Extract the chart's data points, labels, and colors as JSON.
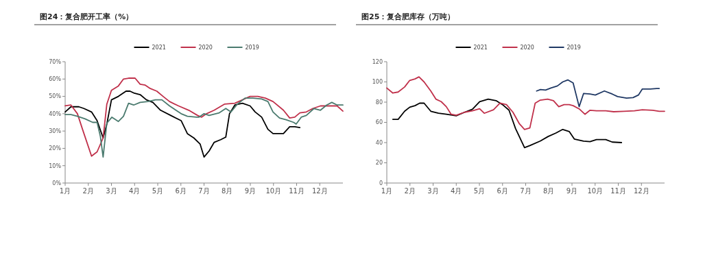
{
  "chart_data": [
    {
      "type": "line",
      "title": "图24：复合肥开工率（%）",
      "legend": "top",
      "grid": false,
      "xlim": [
        1,
        13
      ],
      "xticks": [
        {
          "value": 1,
          "label": "1月"
        },
        {
          "value": 2,
          "label": "2月"
        },
        {
          "value": 3,
          "label": "3月"
        },
        {
          "value": 4,
          "label": "4月"
        },
        {
          "value": 5,
          "label": "5月"
        },
        {
          "value": 6,
          "label": "6月"
        },
        {
          "value": 7,
          "label": "7月"
        },
        {
          "value": 8,
          "label": "8月"
        },
        {
          "value": 9,
          "label": "9月"
        },
        {
          "value": 10,
          "label": "10月"
        },
        {
          "value": 11,
          "label": "11月"
        },
        {
          "value": 12,
          "label": "12月"
        }
      ],
      "ylim": [
        0,
        70
      ],
      "yticks": [
        {
          "value": 0,
          "label": "0%"
        },
        {
          "value": 10,
          "label": "10%"
        },
        {
          "value": 20,
          "label": "20%"
        },
        {
          "value": 30,
          "label": "30%"
        },
        {
          "value": 40,
          "label": "40%"
        },
        {
          "value": 50,
          "label": "50%"
        },
        {
          "value": 60,
          "label": "60%"
        },
        {
          "value": 70,
          "label": "70%"
        }
      ],
      "series": [
        {
          "name": "2021",
          "color": "#000000",
          "x": [
            1.0,
            1.25,
            1.59,
            1.81,
            2.14,
            2.38,
            2.64,
            2.8,
            3.0,
            3.3,
            3.63,
            3.8,
            3.96,
            4.24,
            4.51,
            4.79,
            5.12,
            5.56,
            6.01,
            6.28,
            6.56,
            6.83,
            7.0,
            7.22,
            7.44,
            7.72,
            7.94,
            8.1,
            8.33,
            8.66,
            8.99,
            9.21,
            9.49,
            9.76,
            9.98,
            10.43,
            10.7,
            10.92,
            11.14
          ],
          "values": [
            41,
            44,
            44,
            43,
            41,
            36,
            26,
            34,
            48,
            50,
            53,
            53,
            52,
            51,
            48,
            46.5,
            42,
            39,
            36,
            28.5,
            26,
            22.5,
            15,
            18.5,
            23.5,
            25,
            26.5,
            40,
            45,
            46,
            44.5,
            41,
            38,
            31,
            28.5,
            28.5,
            32.5,
            32.5,
            32
          ]
        },
        {
          "name": "2020",
          "color": "#c0304a",
          "x": [
            1.0,
            1.25,
            1.53,
            1.75,
            2.14,
            2.38,
            2.64,
            2.8,
            3.0,
            3.3,
            3.52,
            3.74,
            4.02,
            4.24,
            4.46,
            4.68,
            4.96,
            5.23,
            5.51,
            5.9,
            6.34,
            6.72,
            6.89,
            7.11,
            7.44,
            7.88,
            8.33,
            8.66,
            8.99,
            9.32,
            9.65,
            9.98,
            10.43,
            10.7,
            10.92,
            11.14,
            11.42,
            11.7,
            12.03,
            12.36,
            12.75,
            13.0
          ],
          "values": [
            44.5,
            45,
            40,
            31,
            15.5,
            18,
            26,
            45.5,
            53.5,
            56,
            60,
            60.5,
            60.5,
            57,
            56.5,
            54.5,
            53,
            50,
            47,
            44.5,
            42,
            39,
            38,
            40,
            42,
            45.5,
            46,
            48,
            50,
            50,
            49,
            47,
            42,
            37.5,
            38,
            40.5,
            41,
            43,
            44.5,
            44.5,
            44.5,
            41.5
          ]
        },
        {
          "name": "2019",
          "color": "#4a7a6e",
          "x": [
            1.0,
            1.25,
            1.53,
            1.86,
            2.19,
            2.38,
            2.52,
            2.64,
            2.8,
            3.02,
            3.3,
            3.52,
            3.74,
            3.96,
            4.24,
            4.57,
            4.9,
            5.18,
            5.51,
            6.01,
            6.28,
            6.67,
            6.78,
            7.0,
            7.22,
            7.66,
            7.94,
            8.16,
            8.44,
            8.77,
            9.1,
            9.49,
            9.76,
            9.98,
            10.26,
            10.54,
            10.87,
            10.98,
            11.2,
            11.42,
            11.75,
            12.03,
            12.3,
            12.52,
            12.75,
            13.0
          ],
          "values": [
            39.5,
            39.5,
            38.5,
            37,
            35,
            35,
            27,
            15,
            34.5,
            38,
            35.5,
            38.5,
            46,
            45,
            46.5,
            47,
            48,
            48,
            44.5,
            40,
            38.5,
            38,
            38,
            40,
            39,
            40.5,
            43,
            41,
            45.5,
            49,
            49,
            48.5,
            47,
            41,
            37.5,
            36.5,
            35,
            34,
            38,
            39,
            43,
            42,
            45,
            46.5,
            45,
            45
          ]
        }
      ]
    },
    {
      "type": "line",
      "title": "图25：复合肥库存（万吨）",
      "legend": "top",
      "grid": false,
      "xlim": [
        1,
        13
      ],
      "xticks": [
        {
          "value": 1,
          "label": "1月"
        },
        {
          "value": 2,
          "label": "2月"
        },
        {
          "value": 3,
          "label": "3月"
        },
        {
          "value": 4,
          "label": "4月"
        },
        {
          "value": 5,
          "label": "5月"
        },
        {
          "value": 6,
          "label": "6月"
        },
        {
          "value": 7,
          "label": "7月"
        },
        {
          "value": 8,
          "label": "8月"
        },
        {
          "value": 9,
          "label": "9月"
        },
        {
          "value": 10,
          "label": "10月"
        },
        {
          "value": 11,
          "label": "11月"
        },
        {
          "value": 12,
          "label": "12月"
        }
      ],
      "ylim": [
        0,
        120
      ],
      "yticks": [
        0,
        20,
        40,
        60,
        80,
        100,
        120
      ],
      "series": [
        {
          "name": "2021",
          "color": "#000000",
          "x": [
            1.26,
            1.49,
            1.77,
            1.99,
            2.22,
            2.42,
            2.61,
            2.9,
            3.23,
            3.57,
            4.0,
            4.36,
            4.7,
            5.01,
            5.38,
            5.72,
            6.0,
            6.28,
            6.56,
            6.95,
            7.18,
            7.63,
            7.97,
            8.31,
            8.6,
            8.88,
            9.1,
            9.5,
            9.78,
            10.06,
            10.46,
            10.74,
            11.14
          ],
          "values": [
            63,
            63,
            71,
            75,
            76.5,
            79,
            79,
            71,
            69,
            68,
            66.5,
            70,
            73,
            80.5,
            83,
            81.5,
            77.5,
            72,
            54,
            35,
            37,
            41.5,
            46,
            49.5,
            53,
            51,
            43.5,
            41.5,
            41,
            43,
            43,
            40.5,
            40
          ]
        },
        {
          "name": "2020",
          "color": "#c0304a",
          "x": [
            1.0,
            1.26,
            1.49,
            1.77,
            1.99,
            2.22,
            2.39,
            2.61,
            2.9,
            3.12,
            3.35,
            3.57,
            3.78,
            4.0,
            4.36,
            4.7,
            5.01,
            5.21,
            5.61,
            5.89,
            6.17,
            6.45,
            6.73,
            6.95,
            7.18,
            7.41,
            7.63,
            7.95,
            8.2,
            8.43,
            8.66,
            8.88,
            9.05,
            9.33,
            9.56,
            9.78,
            10.06,
            10.46,
            10.8,
            11.25,
            11.7,
            12.04,
            12.49,
            12.77,
            13.0
          ],
          "values": [
            94,
            89,
            90,
            95,
            101.5,
            103,
            105,
            100,
            91,
            83,
            80.5,
            75.5,
            68,
            67,
            70,
            71.5,
            73.5,
            69,
            72.5,
            79,
            77.5,
            70,
            58.5,
            53,
            54.5,
            79,
            82,
            83,
            81.5,
            75.5,
            77.5,
            77.5,
            76.5,
            73,
            68,
            72,
            71.5,
            71.5,
            70.5,
            71,
            71.5,
            72.5,
            72,
            71,
            71
          ]
        },
        {
          "name": "2019",
          "color": "#1f3864",
          "x": [
            7.47,
            7.64,
            7.86,
            8.09,
            8.37,
            8.6,
            8.82,
            9.05,
            9.31,
            9.5,
            9.78,
            10.01,
            10.4,
            10.74,
            10.97,
            11.36,
            11.64,
            11.87,
            12.04,
            12.38,
            12.66,
            12.77
          ],
          "values": [
            91,
            92.5,
            92,
            94,
            96,
            100,
            102,
            99,
            75.5,
            88.5,
            88,
            87,
            91,
            88,
            85.5,
            84,
            84.5,
            87,
            93,
            93,
            93.5,
            93.5
          ]
        }
      ]
    }
  ]
}
